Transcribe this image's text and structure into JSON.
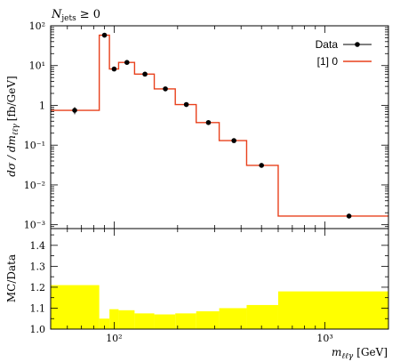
{
  "chart_data": [
    {
      "type": "line",
      "title": "N_jets ≥ 0",
      "title_main": "N",
      "title_sub": "jets",
      "title_rel": "≥ 0",
      "xlabel": "m_ℓℓγ [GeV]",
      "xlabel_main": "m",
      "xlabel_sub": "ℓℓγ",
      "xlabel_unit": "[GeV]",
      "ylabel": "dσ / dm_ℓℓγ [fb/GeV]",
      "ylabel_pre": "dσ / dm",
      "ylabel_sub": "ℓℓγ",
      "ylabel_unit": "[fb/GeV]",
      "x_scale": "log",
      "y_scale": "log",
      "xlim": [
        50,
        2000
      ],
      "ylim": [
        0.0008,
        100
      ],
      "xticks": [
        {
          "value": 100,
          "label": "10²"
        },
        {
          "value": 1000,
          "label": "10³"
        }
      ],
      "yticks": [
        {
          "value": 0.001,
          "label": "10⁻³"
        },
        {
          "value": 0.01,
          "label": "10⁻²"
        },
        {
          "value": 0.1,
          "label": "10⁻¹"
        },
        {
          "value": 1,
          "label": "1"
        },
        {
          "value": 10,
          "label": "10¹"
        },
        {
          "value": 100,
          "label": "10²"
        }
      ],
      "legend_position": "top-right",
      "series": [
        {
          "name": "Data",
          "kind": "points",
          "color": "#000000",
          "points": [
            {
              "x": 65,
              "y": 0.75,
              "err_lo": 0.15,
              "err_hi": 0.15
            },
            {
              "x": 90,
              "y": 58
            },
            {
              "x": 100,
              "y": 8.2
            },
            {
              "x": 115,
              "y": 12
            },
            {
              "x": 140,
              "y": 6.1
            },
            {
              "x": 175,
              "y": 2.6
            },
            {
              "x": 220,
              "y": 1.05
            },
            {
              "x": 280,
              "y": 0.37
            },
            {
              "x": 370,
              "y": 0.13
            },
            {
              "x": 500,
              "y": 0.031
            },
            {
              "x": 1300,
              "y": 0.00165
            }
          ]
        },
        {
          "name": "[1] 0",
          "kind": "step",
          "color": "#e8401c",
          "bins": [
            {
              "lo": 50,
              "hi": 85,
              "y": 0.75
            },
            {
              "lo": 85,
              "hi": 95,
              "y": 58
            },
            {
              "lo": 95,
              "hi": 105,
              "y": 8.2
            },
            {
              "lo": 105,
              "hi": 125,
              "y": 12
            },
            {
              "lo": 125,
              "hi": 155,
              "y": 6.1
            },
            {
              "lo": 155,
              "hi": 195,
              "y": 2.6
            },
            {
              "lo": 195,
              "hi": 245,
              "y": 1.05
            },
            {
              "lo": 245,
              "hi": 315,
              "y": 0.37
            },
            {
              "lo": 315,
              "hi": 425,
              "y": 0.13
            },
            {
              "lo": 425,
              "hi": 600,
              "y": 0.031
            },
            {
              "lo": 600,
              "hi": 2000,
              "y": 0.00165
            }
          ]
        }
      ]
    },
    {
      "type": "area",
      "ylabel": "MC/Data",
      "x_scale": "log",
      "xlim": [
        50,
        2000
      ],
      "ylim": [
        1.0,
        1.48
      ],
      "yticks": [
        {
          "value": 1.0,
          "label": "1.0"
        },
        {
          "value": 1.1,
          "label": "1.1"
        },
        {
          "value": 1.2,
          "label": "1.2"
        },
        {
          "value": 1.3,
          "label": "1.3"
        },
        {
          "value": 1.4,
          "label": "1.4"
        }
      ],
      "band_color": "#ffff00",
      "bins": [
        {
          "lo": 50,
          "hi": 85,
          "y": 1.21
        },
        {
          "lo": 85,
          "hi": 95,
          "y": 1.05
        },
        {
          "lo": 95,
          "hi": 105,
          "y": 1.095
        },
        {
          "lo": 105,
          "hi": 125,
          "y": 1.09
        },
        {
          "lo": 125,
          "hi": 155,
          "y": 1.075
        },
        {
          "lo": 155,
          "hi": 195,
          "y": 1.07
        },
        {
          "lo": 195,
          "hi": 245,
          "y": 1.075
        },
        {
          "lo": 245,
          "hi": 315,
          "y": 1.085
        },
        {
          "lo": 315,
          "hi": 425,
          "y": 1.1
        },
        {
          "lo": 425,
          "hi": 600,
          "y": 1.115
        },
        {
          "lo": 600,
          "hi": 2000,
          "y": 1.18
        }
      ]
    }
  ]
}
